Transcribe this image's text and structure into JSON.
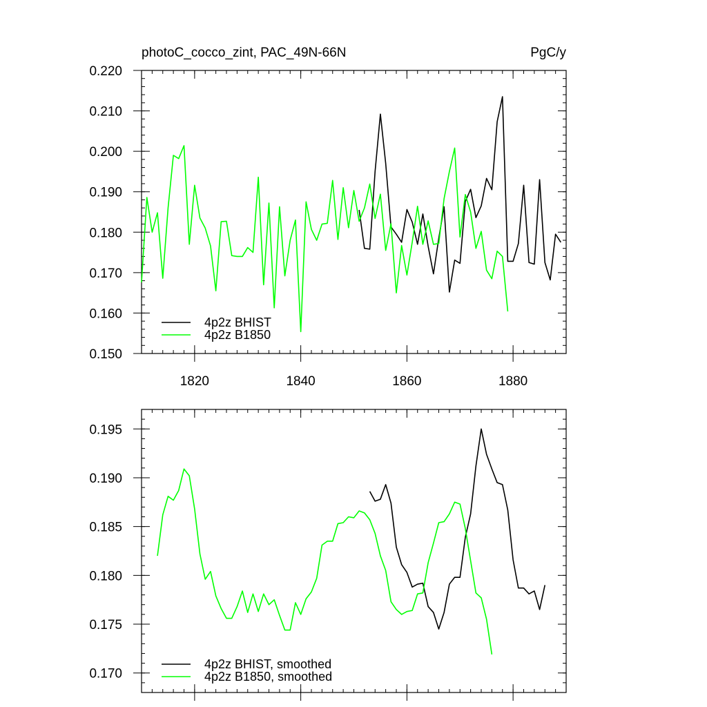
{
  "chart_data": [
    {
      "type": "line",
      "title_left": "photoC_cocco_zint, PAC_49N-66N",
      "title_right": "PgC/y",
      "xlabel": "",
      "ylabel": "",
      "xlim": [
        1810,
        1890
      ],
      "ylim": [
        0.15,
        0.22
      ],
      "x_ticks": [
        1820,
        1840,
        1860,
        1880
      ],
      "x_tick_labels": [
        "1820",
        "1840",
        "1860",
        "1880"
      ],
      "y_ticks": [
        0.15,
        0.16,
        0.17,
        0.18,
        0.19,
        0.2,
        0.21,
        0.22
      ],
      "y_tick_labels": [
        "0.150",
        "0.160",
        "0.170",
        "0.180",
        "0.190",
        "0.200",
        "0.210",
        "0.220"
      ],
      "legend_position": "bottom-left",
      "series": [
        {
          "name": "4p2z BHIST",
          "color": "#000000",
          "x": [
            1851,
            1852,
            1853,
            1854,
            1855,
            1856,
            1857,
            1858,
            1859,
            1860,
            1861,
            1862,
            1863,
            1864,
            1865,
            1866,
            1867,
            1868,
            1869,
            1870,
            1871,
            1872,
            1873,
            1874,
            1875,
            1876,
            1877,
            1878,
            1879,
            1880,
            1881,
            1882,
            1883,
            1884,
            1885,
            1886,
            1887,
            1888,
            1889
          ],
          "y": [
            0.1855,
            0.176,
            0.1758,
            0.195,
            0.2092,
            0.197,
            0.1813,
            0.1795,
            0.1775,
            0.1856,
            0.1825,
            0.177,
            0.1845,
            0.1765,
            0.1697,
            0.1785,
            0.1863,
            0.1652,
            0.1731,
            0.1723,
            0.1876,
            0.1906,
            0.1836,
            0.1865,
            0.1933,
            0.1905,
            0.2073,
            0.2135,
            0.1728,
            0.1728,
            0.1772,
            0.1916,
            0.1725,
            0.1721,
            0.193,
            0.1725,
            0.1682,
            0.1795,
            0.1775
          ]
        },
        {
          "name": "4p2z B1850",
          "color": "#00ff00",
          "x": [
            1810,
            1811,
            1812,
            1813,
            1814,
            1815,
            1816,
            1817,
            1818,
            1819,
            1820,
            1821,
            1822,
            1823,
            1824,
            1825,
            1826,
            1827,
            1828,
            1829,
            1830,
            1831,
            1832,
            1833,
            1834,
            1835,
            1836,
            1837,
            1838,
            1839,
            1840,
            1841,
            1842,
            1843,
            1844,
            1845,
            1846,
            1847,
            1848,
            1849,
            1850,
            1851,
            1852,
            1853,
            1854,
            1855,
            1856,
            1857,
            1858,
            1859,
            1860,
            1861,
            1862,
            1863,
            1864,
            1865,
            1866,
            1867,
            1868,
            1869,
            1870,
            1871,
            1872,
            1873,
            1874,
            1875,
            1876,
            1877,
            1878,
            1879
          ],
          "y": [
            0.1676,
            0.1886,
            0.18,
            0.1848,
            0.1686,
            0.186,
            0.199,
            0.1982,
            0.2014,
            0.177,
            0.1916,
            0.1835,
            0.181,
            0.1766,
            0.1655,
            0.1826,
            0.1827,
            0.1742,
            0.174,
            0.174,
            0.1762,
            0.175,
            0.1936,
            0.167,
            0.1872,
            0.1613,
            0.1863,
            0.1692,
            0.178,
            0.183,
            0.1554,
            0.1875,
            0.1807,
            0.178,
            0.182,
            0.1822,
            0.1928,
            0.1782,
            0.191,
            0.1811,
            0.1903,
            0.1827,
            0.186,
            0.1919,
            0.1834,
            0.1894,
            0.1755,
            0.1821,
            0.165,
            0.1767,
            0.1694,
            0.1775,
            0.1864,
            0.177,
            0.1828,
            0.177,
            0.1772,
            0.1883,
            0.195,
            0.2008,
            0.1788,
            0.1893,
            0.185,
            0.176,
            0.1802,
            0.1706,
            0.1685,
            0.1753,
            0.174,
            0.1604
          ]
        }
      ]
    },
    {
      "type": "line",
      "title_left": "",
      "title_right": "",
      "xlabel": "",
      "ylabel": "",
      "xlim": [
        1810,
        1890
      ],
      "ylim": [
        0.168,
        0.197
      ],
      "x_ticks": [
        1820,
        1840,
        1860,
        1880
      ],
      "x_tick_labels": [
        "",
        "",
        "",
        ""
      ],
      "y_ticks": [
        0.17,
        0.175,
        0.18,
        0.185,
        0.19,
        0.195
      ],
      "y_tick_labels": [
        "0.170",
        "0.175",
        "0.180",
        "0.185",
        "0.190",
        "0.195"
      ],
      "legend_position": "bottom-left",
      "series": [
        {
          "name": "4p2z BHIST, smoothed",
          "color": "#000000",
          "x": [
            1853,
            1854,
            1855,
            1856,
            1857,
            1858,
            1859,
            1860,
            1861,
            1862,
            1863,
            1864,
            1865,
            1866,
            1867,
            1868,
            1869,
            1870,
            1871,
            1872,
            1873,
            1874,
            1875,
            1876,
            1877,
            1878,
            1879,
            1880,
            1881,
            1882,
            1883,
            1884,
            1885,
            1886
          ],
          "y": [
            0.1886,
            0.1876,
            0.1878,
            0.1893,
            0.1874,
            0.1829,
            0.1811,
            0.1803,
            0.1788,
            0.1791,
            0.1792,
            0.1768,
            0.1762,
            0.1745,
            0.1762,
            0.1791,
            0.1798,
            0.1798,
            0.1839,
            0.1863,
            0.1912,
            0.195,
            0.1924,
            0.1909,
            0.1895,
            0.1893,
            0.1867,
            0.1816,
            0.1787,
            0.1787,
            0.1781,
            0.1784,
            0.1765,
            0.179
          ]
        },
        {
          "name": "4p2z B1850, smoothed",
          "color": "#00ff00",
          "x": [
            1813,
            1814,
            1815,
            1816,
            1817,
            1818,
            1819,
            1820,
            1821,
            1822,
            1823,
            1824,
            1825,
            1826,
            1827,
            1828,
            1829,
            1830,
            1831,
            1832,
            1833,
            1834,
            1835,
            1836,
            1837,
            1838,
            1839,
            1840,
            1841,
            1842,
            1843,
            1844,
            1845,
            1846,
            1847,
            1848,
            1849,
            1850,
            1851,
            1852,
            1853,
            1854,
            1855,
            1856,
            1857,
            1858,
            1859,
            1860,
            1861,
            1862,
            1863,
            1864,
            1865,
            1866,
            1867,
            1868,
            1869,
            1870,
            1871,
            1872,
            1873,
            1874,
            1875,
            1876
          ],
          "y": [
            0.182,
            0.1862,
            0.1881,
            0.1877,
            0.1887,
            0.1909,
            0.1902,
            0.1868,
            0.1822,
            0.1796,
            0.1804,
            0.1779,
            0.1766,
            0.1756,
            0.1756,
            0.1768,
            0.1784,
            0.1762,
            0.1781,
            0.1763,
            0.1781,
            0.177,
            0.1775,
            0.1759,
            0.1744,
            0.1744,
            0.1772,
            0.176,
            0.1776,
            0.1783,
            0.1797,
            0.1831,
            0.1835,
            0.1835,
            0.1853,
            0.1854,
            0.186,
            0.1859,
            0.1866,
            0.1864,
            0.1857,
            0.1843,
            0.182,
            0.1805,
            0.1773,
            0.1765,
            0.176,
            0.1763,
            0.1764,
            0.1781,
            0.1782,
            0.1813,
            0.1833,
            0.1854,
            0.1855,
            0.1863,
            0.1875,
            0.1873,
            0.1848,
            0.1815,
            0.1782,
            0.1777,
            0.1755,
            0.1719
          ]
        }
      ]
    }
  ]
}
